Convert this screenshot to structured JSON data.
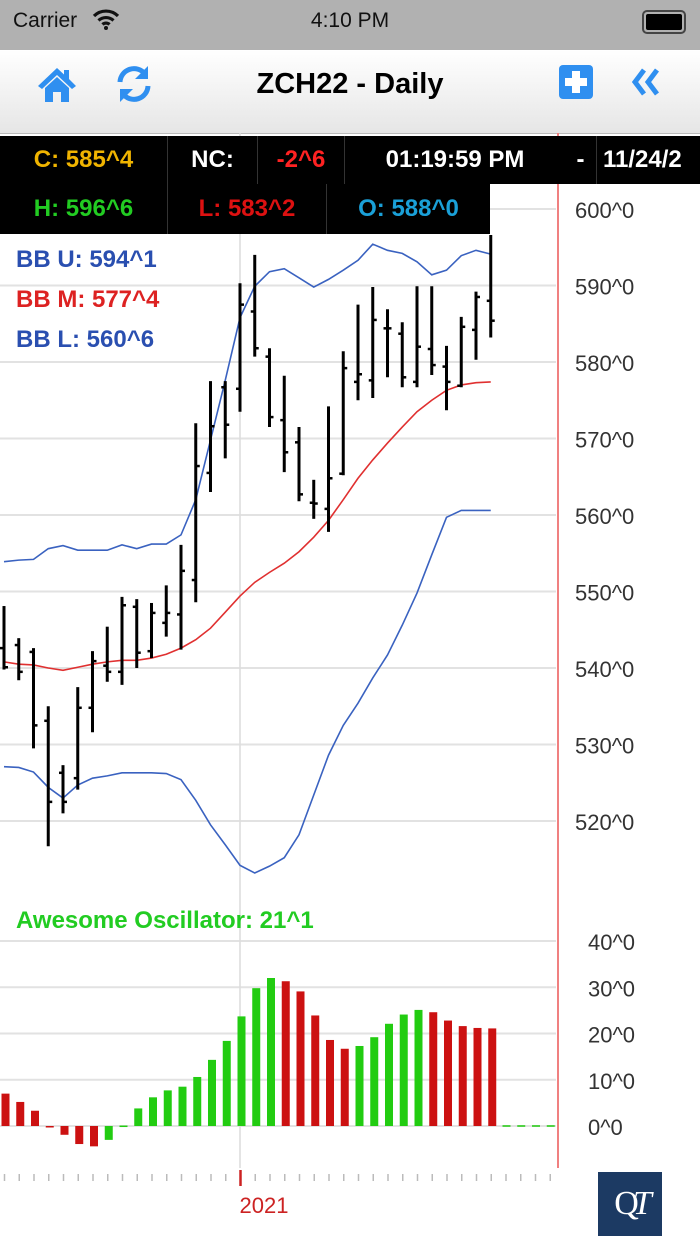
{
  "status_bar": {
    "carrier": "Carrier",
    "time": "4:10 PM"
  },
  "nav": {
    "title": "ZCH22 - Daily",
    "icons": {
      "home": "home-icon",
      "refresh": "refresh-icon",
      "add": "plus-square-icon",
      "collapse": "double-chevron-left-icon"
    },
    "accent": "#2f8ff0"
  },
  "quote": {
    "close": "C: 585^4",
    "net_change_label": "NC:",
    "net_change": "-2^6",
    "time": "01:19:59 PM",
    "separator": "-",
    "date": "11/24/2",
    "high": "H: 596^6",
    "low": "L: 583^2",
    "open": "O: 588^0",
    "colors": {
      "close": "#f0b400",
      "high": "#22cc22",
      "low": "#dd1111",
      "open": "#1aa0d8",
      "nc": "#ff2222"
    }
  },
  "legend": {
    "bb_upper": "BB U: 594^1",
    "bb_middle": "BB M: 577^4",
    "bb_lower": "BB L: 560^6",
    "ao": "Awesome Oscillator: 21^1"
  },
  "chart_data": [
    {
      "type": "ohlc",
      "y_ticks": [
        "600^0",
        "590^0",
        "580^0",
        "570^0",
        "560^0",
        "550^0",
        "540^0",
        "530^0",
        "520^0"
      ],
      "y_tick_values": [
        600,
        590,
        580,
        570,
        560,
        550,
        540,
        530,
        520
      ],
      "ylim": [
        513,
        607
      ],
      "x_label": "2021",
      "x_label_bar_index": 16,
      "grid": true,
      "colors": {
        "bars": "#000000",
        "bb_upper": "#3a62c0",
        "bb_middle": "#e03030",
        "bb_lower": "#3a62c0"
      },
      "open": [
        542.6,
        543.0,
        542.1,
        533.1,
        526.3,
        525.6,
        534.8,
        540.3,
        539.5,
        548.0,
        542.2,
        545.9,
        547.0,
        551.5,
        565.5,
        576.7,
        576.5,
        586.6,
        580.7,
        572.4,
        569.5,
        561.6,
        560.8,
        565.4,
        577.4,
        577.6,
        584.4,
        583.7,
        577.4,
        581.7,
        579.4,
        576.9,
        584.2,
        588.0
      ],
      "high": [
        548.1,
        543.9,
        542.6,
        535.0,
        527.3,
        537.5,
        542.2,
        545.4,
        549.3,
        549.0,
        548.5,
        550.8,
        556.1,
        572.0,
        577.5,
        577.5,
        590.3,
        594.0,
        581.8,
        578.2,
        571.5,
        564.6,
        574.2,
        581.4,
        587.5,
        589.8,
        586.9,
        585.2,
        589.9,
        589.9,
        582.1,
        585.9,
        589.2,
        596.6
      ],
      "low": [
        539.8,
        538.4,
        529.5,
        516.7,
        521.0,
        524.1,
        531.6,
        538.2,
        537.8,
        540.0,
        541.3,
        544.1,
        542.4,
        548.6,
        563.0,
        567.4,
        573.5,
        580.7,
        571.5,
        565.6,
        561.8,
        559.5,
        557.8,
        565.2,
        575.0,
        575.3,
        578.0,
        576.7,
        576.7,
        578.3,
        573.7,
        576.7,
        580.3,
        583.2
      ],
      "close": [
        540.1,
        539.5,
        532.5,
        522.5,
        522.5,
        534.8,
        540.9,
        539.5,
        548.2,
        542.0,
        547.2,
        547.2,
        552.7,
        566.4,
        571.6,
        571.8,
        587.5,
        581.8,
        572.8,
        568.2,
        562.7,
        561.5,
        564.8,
        579.2,
        578.4,
        585.5,
        584.4,
        578.0,
        582.0,
        579.6,
        577.4,
        584.6,
        588.5,
        585.4
      ],
      "bb_upper": [
        553.9,
        554.1,
        554.2,
        555.6,
        556.0,
        555.4,
        555.4,
        555.4,
        556.1,
        555.6,
        556.2,
        556.2,
        557.4,
        562.0,
        569.8,
        577.6,
        585.8,
        589.9,
        591.8,
        592.2,
        591.0,
        589.8,
        590.8,
        592.0,
        593.3,
        595.4,
        594.6,
        594.2,
        593.1,
        591.4,
        592.0,
        593.9,
        594.6,
        594.1
      ],
      "bb_middle": [
        540.8,
        540.5,
        540.4,
        540.0,
        539.7,
        540.1,
        540.5,
        540.8,
        541.0,
        541.0,
        541.3,
        541.8,
        542.6,
        543.7,
        545.2,
        547.3,
        549.4,
        551.2,
        552.5,
        553.7,
        555.2,
        557.1,
        559.3,
        562.0,
        564.8,
        567.2,
        569.4,
        571.5,
        573.5,
        575.0,
        576.3,
        577.0,
        577.3,
        577.4
      ],
      "bb_lower": [
        527.1,
        527.0,
        526.4,
        524.4,
        523.0,
        524.7,
        525.6,
        525.9,
        526.3,
        526.3,
        526.3,
        526.2,
        525.4,
        522.7,
        519.5,
        516.9,
        514.2,
        513.2,
        514.1,
        515.2,
        518.2,
        523.4,
        528.6,
        532.5,
        535.4,
        538.7,
        541.7,
        545.6,
        549.8,
        554.8,
        559.7,
        560.6,
        560.6,
        560.6
      ]
    },
    {
      "type": "bar",
      "y_ticks": [
        "40^0",
        "30^0",
        "20^0",
        "10^0",
        "0^0"
      ],
      "y_tick_values": [
        40,
        30,
        20,
        10,
        0
      ],
      "ylim": [
        -8,
        42
      ],
      "grid": true,
      "colors": {
        "up": "#22cc11",
        "down": "#cc1111"
      },
      "values": [
        7.0,
        5.2,
        3.3,
        -0.3,
        -1.9,
        -3.9,
        -4.4,
        -3.0,
        0.1,
        3.8,
        6.2,
        7.7,
        8.5,
        10.6,
        14.3,
        18.4,
        23.7,
        29.8,
        32.0,
        31.3,
        29.1,
        23.9,
        18.6,
        16.7,
        17.3,
        19.2,
        22.1,
        24.1,
        25.1,
        24.6,
        22.8,
        21.6,
        21.2,
        21.1
      ],
      "direction": [
        "down",
        "down",
        "down",
        "down",
        "down",
        "down",
        "down",
        "up",
        "up",
        "up",
        "up",
        "up",
        "up",
        "up",
        "up",
        "up",
        "up",
        "up",
        "up",
        "down",
        "down",
        "down",
        "down",
        "down",
        "up",
        "up",
        "up",
        "up",
        "up",
        "down",
        "down",
        "down",
        "down",
        "down"
      ]
    }
  ],
  "logo": "QT"
}
